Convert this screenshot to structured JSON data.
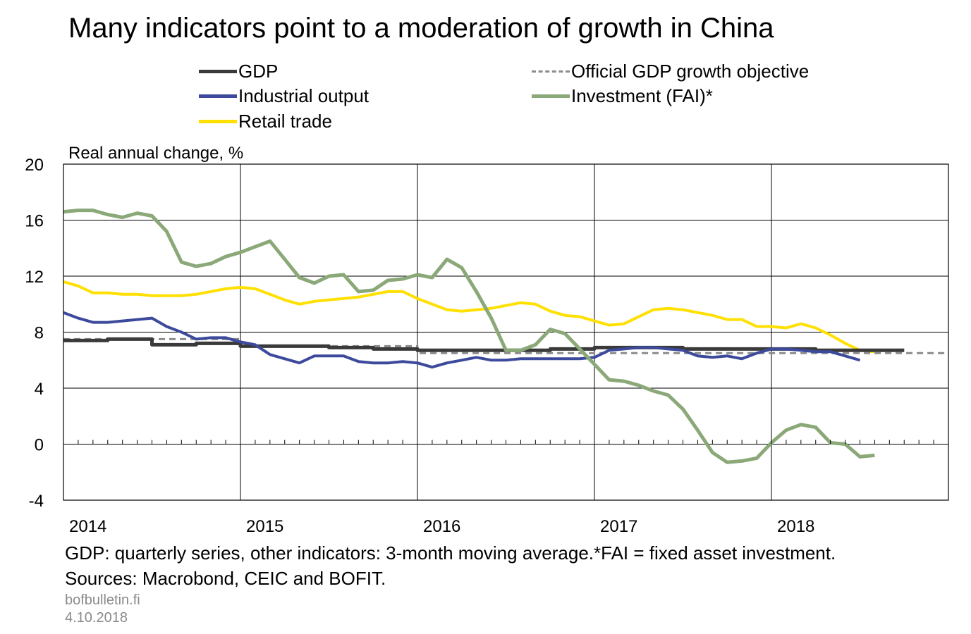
{
  "title": "Many indicators point to a moderation of growth in China",
  "legend": [
    {
      "label": "GDP",
      "color": "#3a3a3a",
      "style": "solid"
    },
    {
      "label": "Official GDP growth objective",
      "color": "#8c8c8c",
      "style": "dashed"
    },
    {
      "label": "Industrial output",
      "color": "#3d4a9c",
      "style": "solid"
    },
    {
      "label": "Investment (FAI)*",
      "color": "#8aa878",
      "style": "solid"
    },
    {
      "label": "Retail trade",
      "color": "#ffe000",
      "style": "solid"
    }
  ],
  "footnote": {
    "line1": "GDP: quarterly series, other indicators: 3-month moving average.*FAI = fixed asset investment.",
    "line2": "Sources: Macrobond, CEIC and BOFIT."
  },
  "brand": {
    "site": "bofbulletin.fi",
    "date": "4.10.2018"
  },
  "chart_data": {
    "type": "line",
    "ylabel": "Real annual change, %",
    "xlabel": "",
    "xlim": [
      2014.0,
      2019.0
    ],
    "ylim": [
      -4,
      20
    ],
    "yticks": [
      -4,
      0,
      4,
      8,
      12,
      16,
      20
    ],
    "xticks": [
      "2014",
      "2015",
      "2016",
      "2017",
      "2018"
    ],
    "grid": true,
    "legend_position": "top",
    "series": [
      {
        "name": "GDP",
        "step": true,
        "points": [
          [
            2014.0,
            7.4
          ],
          [
            2014.25,
            7.5
          ],
          [
            2014.5,
            7.1
          ],
          [
            2014.75,
            7.2
          ],
          [
            2015.0,
            7.0
          ],
          [
            2015.25,
            7.0
          ],
          [
            2015.5,
            6.9
          ],
          [
            2015.75,
            6.8
          ],
          [
            2016.0,
            6.7
          ],
          [
            2016.25,
            6.7
          ],
          [
            2016.5,
            6.7
          ],
          [
            2016.75,
            6.8
          ],
          [
            2017.0,
            6.9
          ],
          [
            2017.25,
            6.9
          ],
          [
            2017.5,
            6.8
          ],
          [
            2017.75,
            6.8
          ],
          [
            2018.0,
            6.8
          ],
          [
            2018.25,
            6.7
          ],
          [
            2018.5,
            6.7
          ]
        ]
      },
      {
        "name": "Official GDP growth objective",
        "step": true,
        "points": [
          [
            2014.0,
            7.5
          ],
          [
            2015.0,
            7.0
          ],
          [
            2016.0,
            6.5
          ],
          [
            2017.0,
            6.5
          ],
          [
            2018.0,
            6.5
          ],
          [
            2019.0,
            6.5
          ]
        ]
      },
      {
        "name": "Industrial output",
        "points": [
          [
            2014.0,
            9.4
          ],
          [
            2014.083,
            9.0
          ],
          [
            2014.167,
            8.7
          ],
          [
            2014.25,
            8.7
          ],
          [
            2014.333,
            8.8
          ],
          [
            2014.417,
            8.9
          ],
          [
            2014.5,
            9.0
          ],
          [
            2014.583,
            8.4
          ],
          [
            2014.667,
            8.0
          ],
          [
            2014.75,
            7.5
          ],
          [
            2014.833,
            7.6
          ],
          [
            2014.917,
            7.6
          ],
          [
            2015.0,
            7.3
          ],
          [
            2015.083,
            7.1
          ],
          [
            2015.167,
            6.4
          ],
          [
            2015.25,
            6.1
          ],
          [
            2015.333,
            5.8
          ],
          [
            2015.417,
            6.3
          ],
          [
            2015.5,
            6.3
          ],
          [
            2015.583,
            6.3
          ],
          [
            2015.667,
            5.9
          ],
          [
            2015.75,
            5.8
          ],
          [
            2015.833,
            5.8
          ],
          [
            2015.917,
            5.9
          ],
          [
            2016.0,
            5.8
          ],
          [
            2016.083,
            5.5
          ],
          [
            2016.167,
            5.8
          ],
          [
            2016.25,
            6.0
          ],
          [
            2016.333,
            6.2
          ],
          [
            2016.417,
            6.0
          ],
          [
            2016.5,
            6.0
          ],
          [
            2016.583,
            6.1
          ],
          [
            2016.667,
            6.1
          ],
          [
            2016.75,
            6.1
          ],
          [
            2016.833,
            6.1
          ],
          [
            2016.917,
            6.1
          ],
          [
            2017.0,
            6.2
          ],
          [
            2017.083,
            6.7
          ],
          [
            2017.167,
            6.8
          ],
          [
            2017.25,
            6.9
          ],
          [
            2017.333,
            6.9
          ],
          [
            2017.417,
            6.8
          ],
          [
            2017.5,
            6.7
          ],
          [
            2017.583,
            6.3
          ],
          [
            2017.667,
            6.2
          ],
          [
            2017.75,
            6.3
          ],
          [
            2017.833,
            6.1
          ],
          [
            2017.917,
            6.5
          ],
          [
            2018.0,
            6.8
          ],
          [
            2018.083,
            6.8
          ],
          [
            2018.167,
            6.7
          ],
          [
            2018.25,
            6.6
          ],
          [
            2018.333,
            6.6
          ],
          [
            2018.417,
            6.3
          ],
          [
            2018.5,
            6.0
          ]
        ]
      },
      {
        "name": "Investment (FAI)*",
        "points": [
          [
            2014.0,
            16.6
          ],
          [
            2014.083,
            16.7
          ],
          [
            2014.167,
            16.7
          ],
          [
            2014.25,
            16.4
          ],
          [
            2014.333,
            16.2
          ],
          [
            2014.417,
            16.5
          ],
          [
            2014.5,
            16.3
          ],
          [
            2014.583,
            15.2
          ],
          [
            2014.667,
            13.0
          ],
          [
            2014.75,
            12.7
          ],
          [
            2014.833,
            12.9
          ],
          [
            2014.917,
            13.4
          ],
          [
            2015.0,
            13.7
          ],
          [
            2015.083,
            14.1
          ],
          [
            2015.167,
            14.5
          ],
          [
            2015.25,
            13.2
          ],
          [
            2015.333,
            11.9
          ],
          [
            2015.417,
            11.5
          ],
          [
            2015.5,
            12.0
          ],
          [
            2015.583,
            12.1
          ],
          [
            2015.667,
            10.9
          ],
          [
            2015.75,
            11.0
          ],
          [
            2015.833,
            11.7
          ],
          [
            2015.917,
            11.8
          ],
          [
            2016.0,
            12.1
          ],
          [
            2016.083,
            11.9
          ],
          [
            2016.167,
            13.2
          ],
          [
            2016.25,
            12.6
          ],
          [
            2016.333,
            10.9
          ],
          [
            2016.417,
            9.0
          ],
          [
            2016.5,
            6.7
          ],
          [
            2016.583,
            6.7
          ],
          [
            2016.667,
            7.1
          ],
          [
            2016.75,
            8.2
          ],
          [
            2016.833,
            7.9
          ],
          [
            2016.917,
            6.8
          ],
          [
            2017.0,
            5.7
          ],
          [
            2017.083,
            4.6
          ],
          [
            2017.167,
            4.5
          ],
          [
            2017.25,
            4.2
          ],
          [
            2017.333,
            3.8
          ],
          [
            2017.417,
            3.5
          ],
          [
            2017.5,
            2.5
          ],
          [
            2017.583,
            1.0
          ],
          [
            2017.667,
            -0.6
          ],
          [
            2017.75,
            -1.3
          ],
          [
            2017.833,
            -1.2
          ],
          [
            2017.917,
            -1.0
          ],
          [
            2018.0,
            0.1
          ],
          [
            2018.083,
            1.0
          ],
          [
            2018.167,
            1.4
          ],
          [
            2018.25,
            1.2
          ],
          [
            2018.333,
            0.1
          ],
          [
            2018.417,
            0.0
          ],
          [
            2018.5,
            -0.9
          ],
          [
            2018.583,
            -0.8
          ]
        ]
      },
      {
        "name": "Retail trade",
        "points": [
          [
            2014.0,
            11.6
          ],
          [
            2014.083,
            11.3
          ],
          [
            2014.167,
            10.8
          ],
          [
            2014.25,
            10.8
          ],
          [
            2014.333,
            10.7
          ],
          [
            2014.417,
            10.7
          ],
          [
            2014.5,
            10.6
          ],
          [
            2014.583,
            10.6
          ],
          [
            2014.667,
            10.6
          ],
          [
            2014.75,
            10.7
          ],
          [
            2014.833,
            10.9
          ],
          [
            2014.917,
            11.1
          ],
          [
            2015.0,
            11.2
          ],
          [
            2015.083,
            11.1
          ],
          [
            2015.167,
            10.7
          ],
          [
            2015.25,
            10.3
          ],
          [
            2015.333,
            10.0
          ],
          [
            2015.417,
            10.2
          ],
          [
            2015.5,
            10.3
          ],
          [
            2015.583,
            10.4
          ],
          [
            2015.667,
            10.5
          ],
          [
            2015.75,
            10.7
          ],
          [
            2015.833,
            10.9
          ],
          [
            2015.917,
            10.9
          ],
          [
            2016.0,
            10.4
          ],
          [
            2016.083,
            10.0
          ],
          [
            2016.167,
            9.6
          ],
          [
            2016.25,
            9.5
          ],
          [
            2016.333,
            9.6
          ],
          [
            2016.417,
            9.7
          ],
          [
            2016.5,
            9.9
          ],
          [
            2016.583,
            10.1
          ],
          [
            2016.667,
            10.0
          ],
          [
            2016.75,
            9.5
          ],
          [
            2016.833,
            9.2
          ],
          [
            2016.917,
            9.1
          ],
          [
            2017.0,
            8.8
          ],
          [
            2017.083,
            8.5
          ],
          [
            2017.167,
            8.6
          ],
          [
            2017.25,
            9.1
          ],
          [
            2017.333,
            9.6
          ],
          [
            2017.417,
            9.7
          ],
          [
            2017.5,
            9.6
          ],
          [
            2017.583,
            9.4
          ],
          [
            2017.667,
            9.2
          ],
          [
            2017.75,
            8.9
          ],
          [
            2017.833,
            8.9
          ],
          [
            2017.917,
            8.4
          ],
          [
            2018.0,
            8.4
          ],
          [
            2018.083,
            8.3
          ],
          [
            2018.167,
            8.6
          ],
          [
            2018.25,
            8.3
          ],
          [
            2018.333,
            7.8
          ],
          [
            2018.417,
            7.2
          ],
          [
            2018.5,
            6.7
          ],
          [
            2018.583,
            6.6
          ]
        ]
      }
    ]
  }
}
